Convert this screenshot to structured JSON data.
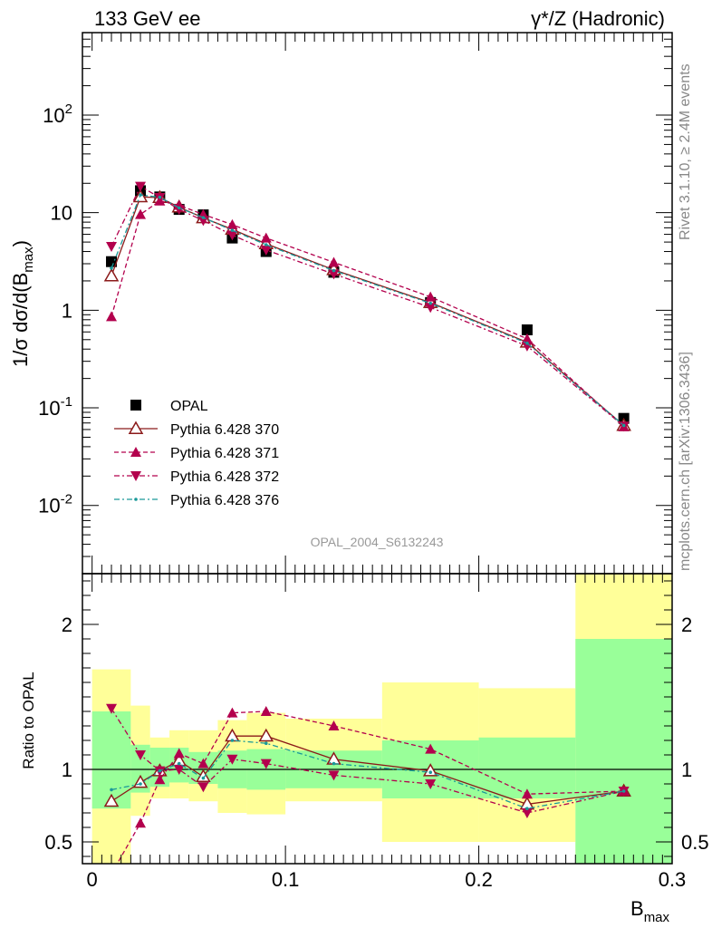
{
  "header": {
    "left_title": "133 GeV ee",
    "right_title": "γ*/Z (Hadronic)"
  },
  "side_text": {
    "rivet": "Rivet 3.1.10, ≥ 2.4M events",
    "mcplots": "mcplots.cern.ch [arXiv:1306.3436]"
  },
  "watermark": "OPAL_2004_S6132243",
  "chart_data": [
    {
      "type": "line",
      "panel": "main",
      "ylabel": "1/σ dσ/d(B_max)",
      "yscale": "log",
      "ylim": [
        0.002,
        700
      ],
      "xlim": [
        -0.005,
        0.3
      ],
      "y_tick_labels": [
        "10^-2",
        "10^-1",
        "1",
        "10",
        "10^2"
      ],
      "x": [
        0.01,
        0.025,
        0.035,
        0.045,
        0.0575,
        0.0725,
        0.09,
        0.125,
        0.175,
        0.225,
        0.275
      ],
      "series": [
        {
          "name": "OPAL",
          "style": "square",
          "color": "#000000",
          "values": [
            3.15,
            16.8,
            14.5,
            10.8,
            9.5,
            5.5,
            4.0,
            2.45,
            1.2,
            0.63,
            0.078
          ]
        },
        {
          "name": "Pythia 6.428 370",
          "style": "open-triangle-solid",
          "color": "#8b1a1a",
          "values": [
            2.25,
            14.5,
            14.3,
            11.4,
            8.85,
            6.75,
            4.8,
            2.6,
            1.2,
            0.47,
            0.066
          ]
        },
        {
          "name": "Pythia 6.428 371",
          "style": "filled-triangle-dashed",
          "color": "#b3004d",
          "values": [
            0.86,
            9.6,
            13.2,
            11.9,
            9.6,
            7.55,
            5.5,
            3.1,
            1.37,
            0.51,
            0.064
          ]
        },
        {
          "name": "Pythia 6.428 372",
          "style": "down-triangle-dashdot",
          "color": "#b3004d",
          "values": [
            4.5,
            18.6,
            14.3,
            10.8,
            8.3,
            5.9,
            4.15,
            2.35,
            1.07,
            0.43,
            0.065
          ]
        },
        {
          "name": "Pythia 6.428 376",
          "style": "dot-dashdot",
          "color": "#1a9999",
          "values": [
            2.7,
            15.2,
            14.4,
            11.2,
            8.9,
            6.6,
            4.7,
            2.55,
            1.18,
            0.46,
            0.066
          ]
        }
      ]
    },
    {
      "type": "line",
      "panel": "ratio",
      "ylabel": "Ratio to OPAL",
      "xlabel": "B_max",
      "ylim": [
        0.35,
        2.35
      ],
      "y_tick_labels": [
        "0.5",
        "1",
        "2"
      ],
      "x_tick_labels": [
        "0",
        "0.1",
        "0.2",
        "0.3"
      ],
      "x": [
        0.01,
        0.025,
        0.035,
        0.045,
        0.0575,
        0.0725,
        0.09,
        0.125,
        0.175,
        0.225,
        0.275
      ],
      "bin_edges": [
        0.0,
        0.02,
        0.03,
        0.04,
        0.05,
        0.065,
        0.08,
        0.1,
        0.15,
        0.2,
        0.25,
        0.3
      ],
      "band_green": [
        [
          0.73,
          1.4
        ],
        [
          0.84,
          1.17
        ],
        [
          0.88,
          1.15
        ],
        [
          0.91,
          1.15
        ],
        [
          0.9,
          1.12
        ],
        [
          0.87,
          1.13
        ],
        [
          0.86,
          1.14
        ],
        [
          0.87,
          1.13
        ],
        [
          0.8,
          1.2
        ],
        [
          0.8,
          1.22
        ],
        [
          0.34,
          1.9
        ]
      ],
      "band_yellow": [
        [
          0.34,
          1.69
        ],
        [
          0.68,
          1.44
        ],
        [
          0.8,
          1.22
        ],
        [
          0.8,
          1.27
        ],
        [
          0.78,
          1.27
        ],
        [
          0.7,
          1.34
        ],
        [
          0.69,
          1.39
        ],
        [
          0.78,
          1.35
        ],
        [
          0.5,
          1.6
        ],
        [
          0.5,
          1.56
        ],
        [
          0.34,
          2.4
        ]
      ],
      "series": [
        {
          "name": "Pythia 6.428 370",
          "style": "open-triangle-solid",
          "color": "#8b1a1a",
          "values": [
            0.78,
            0.91,
            0.99,
            1.06,
            0.95,
            1.23,
            1.23,
            1.07,
            0.99,
            0.76,
            0.85
          ]
        },
        {
          "name": "Pythia 6.428 371",
          "style": "filled-triangle-dashed",
          "color": "#b3004d",
          "values": [
            0.28,
            0.63,
            0.93,
            1.11,
            1.04,
            1.39,
            1.4,
            1.3,
            1.14,
            0.83,
            0.85
          ]
        },
        {
          "name": "Pythia 6.428 372",
          "style": "down-triangle-dashdot",
          "color": "#b3004d",
          "values": [
            1.42,
            1.1,
            0.99,
            1.0,
            0.88,
            1.07,
            1.04,
            0.96,
            0.9,
            0.7,
            0.85
          ]
        },
        {
          "name": "Pythia 6.428 376",
          "style": "dot-dashdot",
          "color": "#1a9999",
          "values": [
            0.86,
            0.9,
            0.99,
            1.04,
            0.94,
            1.2,
            1.18,
            1.04,
            0.98,
            0.73,
            0.85
          ]
        }
      ]
    }
  ]
}
